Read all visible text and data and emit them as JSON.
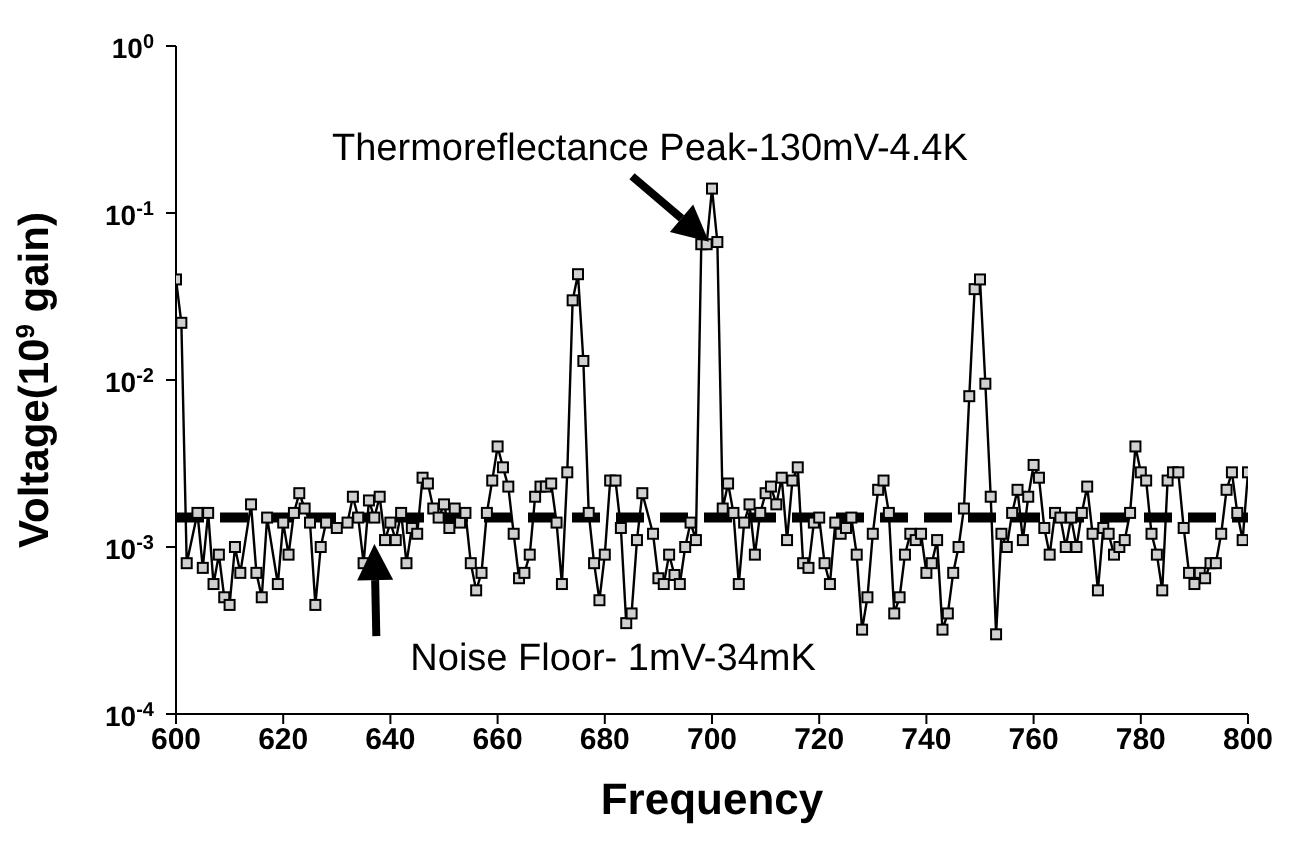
{
  "chart_data": {
    "type": "line",
    "xlabel": "Frequency",
    "ylabel": "Voltage(10$^{9}$ gain)",
    "log": "y",
    "grid": false,
    "marker": "square",
    "line_style": "solid",
    "xlim": [
      600,
      800
    ],
    "xticks": [
      600,
      620,
      640,
      660,
      680,
      700,
      720,
      740,
      760,
      780,
      800
    ],
    "ylim": [
      0.0001,
      1
    ],
    "yticks": [
      {
        "value": 0.0001,
        "label": "10$^{-4}$"
      },
      {
        "value": 0.001,
        "label": "10$^{-3}$"
      },
      {
        "value": 0.01,
        "label": "10$^{-2}$"
      },
      {
        "value": 0.1,
        "label": "10$^{-1}$"
      },
      {
        "value": 1,
        "label": "10$^{0}$"
      }
    ],
    "ref_lines": [
      {
        "axis": "y",
        "value": 0.0015,
        "color": "#000000",
        "line_style": "dashed"
      }
    ],
    "annotations": [
      {
        "text": "Thermoreflectance Peak-130mV-4.4K",
        "x": 700,
        "y": 0.065
      },
      {
        "text": "Noise Floor- 1mV-34mK",
        "x": 637,
        "y": 0.0011
      }
    ],
    "series": [
      {
        "color": "#000000",
        "x": [
          600,
          601,
          602,
          604,
          605,
          606,
          607,
          608,
          609,
          610,
          611,
          612,
          614,
          615,
          616,
          617,
          619,
          620,
          621,
          622,
          623,
          624,
          625,
          626,
          627,
          628,
          630,
          632,
          633,
          634,
          635,
          636,
          637,
          638,
          639,
          640,
          641,
          642,
          643,
          644,
          645,
          646,
          647,
          648,
          649,
          650,
          651,
          652,
          653,
          654,
          655,
          656,
          657,
          658,
          659,
          660,
          661,
          662,
          663,
          664,
          665,
          666,
          667,
          668,
          669,
          670,
          671,
          672,
          673,
          674,
          675,
          676,
          677,
          678,
          679,
          680,
          681,
          682,
          683,
          684,
          685,
          686,
          687,
          689,
          690,
          691,
          692,
          693,
          694,
          695,
          696,
          697,
          698,
          699,
          700,
          701,
          702,
          703,
          704,
          705,
          706,
          707,
          708,
          709,
          710,
          711,
          712,
          713,
          714,
          715,
          716,
          717,
          718,
          719,
          720,
          721,
          722,
          723,
          724,
          725,
          726,
          727,
          728,
          729,
          730,
          731,
          732,
          733,
          734,
          735,
          736,
          737,
          738,
          739,
          740,
          741,
          742,
          743,
          744,
          745,
          746,
          747,
          748,
          749,
          750,
          751,
          752,
          753,
          754,
          755,
          756,
          757,
          758,
          759,
          760,
          761,
          762,
          763,
          764,
          765,
          766,
          767,
          768,
          769,
          770,
          771,
          772,
          773,
          774,
          775,
          776,
          777,
          778,
          779,
          780,
          781,
          782,
          783,
          784,
          785,
          786,
          787,
          788,
          789,
          790,
          791,
          792,
          793,
          794,
          795,
          796,
          797,
          798,
          799,
          800
        ],
        "values": [
          0.04,
          0.022,
          0.0008,
          0.0016,
          0.00075,
          0.0016,
          0.0006,
          0.0009,
          0.0005,
          0.00045,
          0.001,
          0.0007,
          0.0018,
          0.0007,
          0.0005,
          0.0015,
          0.0006,
          0.0014,
          0.0009,
          0.0016,
          0.0021,
          0.0017,
          0.0014,
          0.00045,
          0.001,
          0.0014,
          0.0013,
          0.0014,
          0.002,
          0.0015,
          0.0008,
          0.0019,
          0.0015,
          0.002,
          0.0011,
          0.0014,
          0.0011,
          0.0016,
          0.0008,
          0.0013,
          0.0012,
          0.0026,
          0.0024,
          0.0017,
          0.0015,
          0.0018,
          0.0013,
          0.0017,
          0.0014,
          0.0016,
          0.0008,
          0.00055,
          0.0007,
          0.0016,
          0.0025,
          0.004,
          0.003,
          0.0023,
          0.0012,
          0.00065,
          0.0007,
          0.0009,
          0.002,
          0.0023,
          0.0023,
          0.0024,
          0.0014,
          0.0006,
          0.0028,
          0.03,
          0.043,
          0.013,
          0.0016,
          0.0008,
          0.00048,
          0.0009,
          0.0025,
          0.0025,
          0.0013,
          0.00035,
          0.0004,
          0.0011,
          0.0021,
          0.0012,
          0.00065,
          0.0006,
          0.0009,
          0.00068,
          0.0006,
          0.001,
          0.0014,
          0.0011,
          0.065,
          0.065,
          0.14,
          0.067,
          0.0017,
          0.0024,
          0.0016,
          0.0006,
          0.0014,
          0.0018,
          0.0009,
          0.0016,
          0.0021,
          0.0023,
          0.0018,
          0.0026,
          0.0011,
          0.0025,
          0.003,
          0.0008,
          0.00075,
          0.0014,
          0.0015,
          0.0008,
          0.0006,
          0.0014,
          0.0012,
          0.0013,
          0.0015,
          0.0009,
          0.00032,
          0.0005,
          0.0012,
          0.0022,
          0.0025,
          0.0016,
          0.0004,
          0.0005,
          0.0009,
          0.0012,
          0.0011,
          0.0012,
          0.0007,
          0.0008,
          0.0011,
          0.00032,
          0.0004,
          0.0007,
          0.001,
          0.0017,
          0.008,
          0.035,
          0.04,
          0.0095,
          0.002,
          0.0003,
          0.0012,
          0.001,
          0.0016,
          0.0022,
          0.0011,
          0.002,
          0.0031,
          0.0026,
          0.0013,
          0.0009,
          0.0016,
          0.0015,
          0.001,
          0.0015,
          0.001,
          0.0016,
          0.0023,
          0.0012,
          0.00055,
          0.0013,
          0.0012,
          0.0009,
          0.001,
          0.0011,
          0.0016,
          0.004,
          0.0028,
          0.0025,
          0.0012,
          0.0009,
          0.00055,
          0.0025,
          0.0028,
          0.0028,
          0.0013,
          0.0007,
          0.0006,
          0.0007,
          0.00065,
          0.0008,
          0.0008,
          0.0012,
          0.0022,
          0.0028,
          0.0016,
          0.0011,
          0.0028
        ]
      }
    ]
  }
}
